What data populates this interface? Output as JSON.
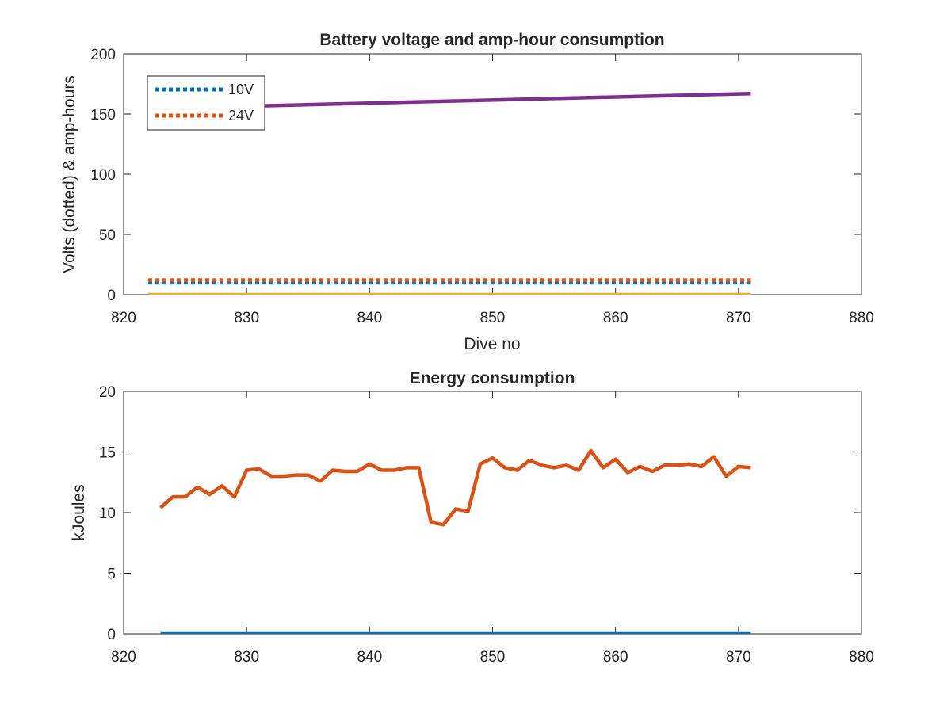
{
  "chart_data": [
    {
      "type": "line",
      "title": "Battery voltage and amp-hour consumption",
      "xlabel": "Dive no",
      "ylabel": "Volts (dotted) & amp-hours",
      "xlim": [
        820,
        880
      ],
      "ylim": [
        0,
        200
      ],
      "xticks": [
        820,
        830,
        840,
        850,
        860,
        870,
        880
      ],
      "yticks": [
        0,
        50,
        100,
        150,
        200
      ],
      "legend_position": "top-left",
      "series": [
        {
          "name": "10V",
          "style": "dotted",
          "color": "#0072BD",
          "x": [
            822,
            871
          ],
          "y": [
            10,
            10
          ]
        },
        {
          "name": "24V",
          "style": "dotted",
          "color": "#D95319",
          "x": [
            822,
            871
          ],
          "y": [
            12,
            12
          ]
        },
        {
          "style": "solid",
          "color": "#EDB120",
          "x": [
            822,
            871
          ],
          "y": [
            0,
            0
          ]
        },
        {
          "style": "solid",
          "color": "#7E2F8E",
          "x": [
            822,
            871
          ],
          "y": [
            154.5,
            167
          ]
        }
      ]
    },
    {
      "type": "line",
      "title": "Energy consumption",
      "xlabel": "",
      "ylabel": "kJoules",
      "xlim": [
        820,
        880
      ],
      "ylim": [
        0,
        20
      ],
      "xticks": [
        820,
        830,
        840,
        850,
        860,
        870,
        880
      ],
      "yticks": [
        0,
        5,
        10,
        15,
        20
      ],
      "series": [
        {
          "style": "solid",
          "color": "#0072BD",
          "x": [
            823,
            871
          ],
          "y": [
            0,
            0
          ]
        },
        {
          "style": "solid",
          "color": "#D95319",
          "x": [
            823,
            824,
            825,
            826,
            827,
            828,
            829,
            830,
            831,
            832,
            833,
            834,
            835,
            836,
            837,
            838,
            839,
            840,
            841,
            842,
            843,
            844,
            845,
            846,
            847,
            848,
            849,
            850,
            851,
            852,
            853,
            854,
            855,
            856,
            857,
            858,
            859,
            860,
            861,
            862,
            863,
            864,
            865,
            866,
            867,
            868,
            869,
            870,
            871
          ],
          "y": [
            10.4,
            11.3,
            11.3,
            12.1,
            11.5,
            12.2,
            11.3,
            13.5,
            13.6,
            13.0,
            13.0,
            13.1,
            13.1,
            12.6,
            13.5,
            13.4,
            13.4,
            14.0,
            13.5,
            13.5,
            13.7,
            13.7,
            9.2,
            9.0,
            10.3,
            10.1,
            14.0,
            14.5,
            13.7,
            13.5,
            14.3,
            13.9,
            13.7,
            13.9,
            13.5,
            15.1,
            13.7,
            14.4,
            13.3,
            13.8,
            13.4,
            13.9,
            13.9,
            14.0,
            13.8,
            14.6,
            13.0,
            13.8,
            13.7
          ]
        }
      ]
    }
  ]
}
